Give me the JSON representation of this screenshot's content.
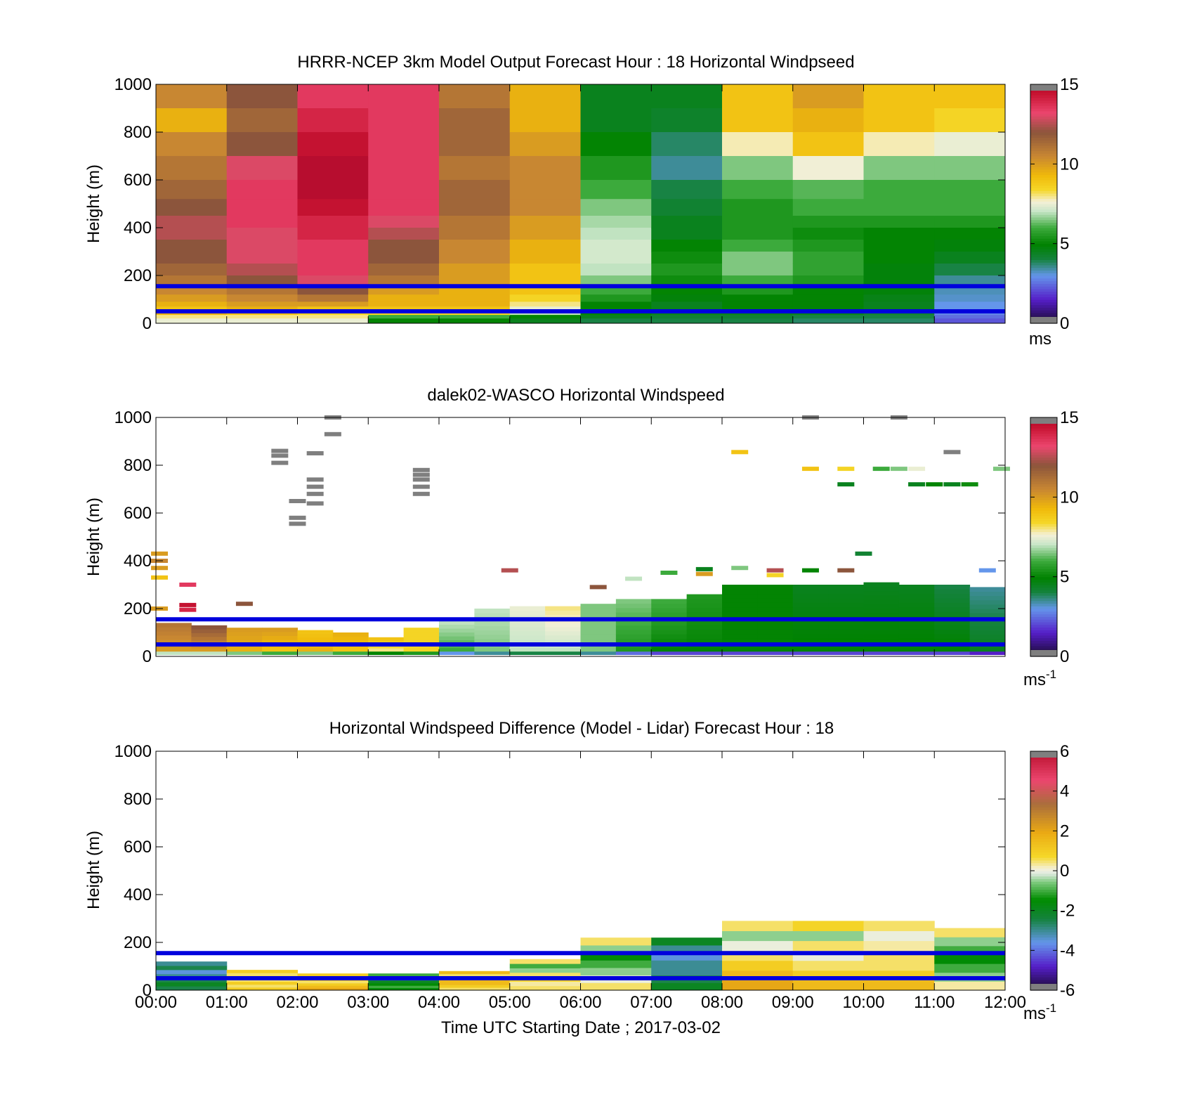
{
  "figure": {
    "xlabel": "Time UTC  Starting Date ; 2017-03-02",
    "x_ticks": [
      "00:00",
      "01:00",
      "02:00",
      "03:00",
      "04:00",
      "05:00",
      "06:00",
      "07:00",
      "08:00",
      "09:00",
      "10:00",
      "11:00",
      "12:00"
    ],
    "reference_line_color": "#0000dd",
    "reference_heights_m": [
      50,
      155
    ]
  },
  "chart_data": [
    {
      "type": "heatmap",
      "title": "HRRR-NCEP 3km Model Output   Forecast Hour : 18 Horizontal Windpseed",
      "ylabel": "Height (m)",
      "ylim": [
        0,
        1000
      ],
      "yticks": [
        0,
        200,
        400,
        600,
        800,
        1000
      ],
      "x_range_hours": [
        0,
        12
      ],
      "colorbar": {
        "min": 0,
        "max": 15,
        "ticks": [
          0,
          5,
          10,
          15
        ],
        "units": "ms",
        "scheme": "speed"
      },
      "levels_m": [
        1000,
        900,
        800,
        700,
        600,
        520,
        450,
        400,
        350,
        300,
        250,
        200,
        150,
        120,
        90,
        70,
        50,
        35,
        20
      ],
      "columns": [
        {
          "hour": 0,
          "values": [
            10.5,
            9.5,
            10.5,
            11,
            11.5,
            12,
            12.5,
            12.5,
            12,
            12,
            11.5,
            11,
            10.5,
            10,
            9.5,
            9,
            9.5,
            8,
            7.5
          ]
        },
        {
          "hour": 1,
          "values": [
            12,
            11.5,
            12,
            13,
            13.5,
            13.5,
            13.5,
            13,
            13,
            13,
            12.5,
            12,
            11,
            10.5,
            10,
            9.5,
            9,
            8,
            7.5
          ]
        },
        {
          "hour": 2,
          "values": [
            13.5,
            14,
            14.5,
            14.8,
            14.8,
            14.5,
            14,
            14,
            13.5,
            13.5,
            13.5,
            13,
            12,
            11,
            10,
            9,
            8.5,
            8,
            7.5
          ]
        },
        {
          "hour": 3,
          "values": [
            13.5,
            13.5,
            13.5,
            13.5,
            13.5,
            13.5,
            13,
            12.5,
            12,
            12,
            11.5,
            11,
            10,
            9.5,
            9.5,
            9,
            8.5,
            6,
            5
          ]
        },
        {
          "hour": 4,
          "values": [
            11,
            11.5,
            11.5,
            11,
            11.5,
            11.5,
            11,
            11,
            10.5,
            10.5,
            10,
            10,
            9.5,
            9.5,
            9.5,
            9,
            8.5,
            6,
            5
          ]
        },
        {
          "hour": 5,
          "values": [
            9.5,
            9.5,
            10,
            10.5,
            10.5,
            10.5,
            10,
            10,
            9.5,
            9.5,
            9,
            9,
            9,
            8.5,
            8,
            7.5,
            7,
            5,
            4.5
          ]
        },
        {
          "hour": 6,
          "values": [
            4.5,
            4.5,
            5,
            5.5,
            6,
            6.5,
            6.8,
            7,
            7.2,
            7.2,
            7,
            6.5,
            6,
            5.5,
            5,
            5,
            5,
            4.5,
            4
          ]
        },
        {
          "hour": 7,
          "values": [
            4.5,
            4.3,
            3.8,
            3.5,
            4,
            4.2,
            4.5,
            4.5,
            5,
            5.2,
            5.5,
            5.2,
            5,
            4.8,
            4.5,
            4.5,
            4.5,
            4.2,
            4
          ]
        },
        {
          "hour": 8,
          "values": [
            9,
            9,
            7.8,
            6.5,
            6,
            5.5,
            5.5,
            5.5,
            6,
            6.5,
            6.5,
            6,
            5.5,
            5,
            5,
            5,
            4.5,
            4.2,
            4
          ]
        },
        {
          "hour": 9,
          "values": [
            10,
            9.5,
            9,
            7.6,
            6.2,
            6,
            5.5,
            5.2,
            5.5,
            5.8,
            5.8,
            5.5,
            5,
            5,
            5,
            4.8,
            4.5,
            4,
            3.8
          ]
        },
        {
          "hour": 10,
          "values": [
            9,
            9,
            7.8,
            6.5,
            6,
            6,
            5.5,
            5,
            5,
            5,
            4.8,
            4.8,
            4.8,
            4.6,
            4.5,
            4.5,
            4.2,
            4,
            3.8
          ]
        },
        {
          "hour": 11,
          "values": [
            9,
            8.5,
            7.5,
            6.5,
            6,
            6,
            5.5,
            5,
            4.8,
            4.5,
            4,
            3.5,
            3.3,
            3.2,
            3,
            3,
            2.8,
            2.5,
            2.2
          ]
        }
      ]
    },
    {
      "type": "heatmap",
      "title": "dalek02-WASCO  Horizontal Windspeed",
      "ylabel": "Height (m)",
      "ylim": [
        0,
        1000
      ],
      "yticks": [
        0,
        200,
        400,
        600,
        800,
        1000
      ],
      "x_range_hours": [
        0,
        12
      ],
      "colorbar": {
        "min": 0,
        "max": 15,
        "ticks": [
          0,
          5,
          10,
          15
        ],
        "units": "ms",
        "units_superscript": "-1",
        "scheme": "speed"
      },
      "profile_hours": [
        0,
        0.5,
        1,
        1.5,
        2,
        2.5,
        3,
        3.5,
        4,
        4.5,
        5,
        5.5,
        6,
        6.5,
        7,
        7.5,
        8,
        8.5,
        9,
        9.5,
        10,
        10.5,
        11,
        11.5
      ],
      "profile_tops_m": [
        140,
        130,
        120,
        120,
        110,
        100,
        80,
        120,
        150,
        200,
        210,
        210,
        220,
        240,
        240,
        260,
        300,
        300,
        300,
        300,
        310,
        300,
        300,
        290
      ],
      "profile_bottom_values": [
        10,
        10,
        9.5,
        9,
        9.5,
        9,
        8,
        8.5,
        6,
        6.5,
        7,
        7,
        6.5,
        5.5,
        5,
        5,
        5,
        5,
        5,
        5,
        5,
        5,
        5,
        4.5
      ],
      "profile_top_values": [
        11,
        12,
        10,
        10,
        9,
        9.5,
        9,
        8.5,
        7,
        7,
        7.5,
        8,
        6.5,
        6.5,
        6,
        5.5,
        5,
        5,
        4.5,
        4.5,
        4.5,
        4.5,
        4,
        3.5
      ],
      "sparse_points": [
        {
          "hour": 0.05,
          "height": 430,
          "value": 10
        },
        {
          "hour": 0.05,
          "height": 400,
          "value": 10.5
        },
        {
          "hour": 0.05,
          "height": 370,
          "value": 10
        },
        {
          "hour": 0.05,
          "height": 330,
          "value": 9
        },
        {
          "hour": 0.05,
          "height": 200,
          "value": 10
        },
        {
          "hour": 0.45,
          "height": 300,
          "value": 13.5
        },
        {
          "hour": 0.45,
          "height": 215,
          "value": 14.5
        },
        {
          "hour": 0.45,
          "height": 195,
          "value": 14
        },
        {
          "hour": 1.25,
          "height": 220,
          "value": 12
        },
        {
          "hour": 1.75,
          "height": 860,
          "value": 16
        },
        {
          "hour": 1.75,
          "height": 840,
          "value": 16
        },
        {
          "hour": 1.75,
          "height": 810,
          "value": 16
        },
        {
          "hour": 2.25,
          "height": 850,
          "value": 16
        },
        {
          "hour": 2.25,
          "height": 740,
          "value": 16
        },
        {
          "hour": 2.25,
          "height": 710,
          "value": 16
        },
        {
          "hour": 2.25,
          "height": 680,
          "value": 16
        },
        {
          "hour": 2.25,
          "height": 640,
          "value": 16
        },
        {
          "hour": 2.0,
          "height": 650,
          "value": 16
        },
        {
          "hour": 2.0,
          "height": 580,
          "value": 16
        },
        {
          "hour": 2.0,
          "height": 555,
          "value": 16
        },
        {
          "hour": 2.5,
          "height": 1000,
          "value": 16
        },
        {
          "hour": 2.5,
          "height": 930,
          "value": 16
        },
        {
          "hour": 3.75,
          "height": 780,
          "value": 16
        },
        {
          "hour": 3.75,
          "height": 760,
          "value": 16
        },
        {
          "hour": 3.75,
          "height": 740,
          "value": 16
        },
        {
          "hour": 3.75,
          "height": 710,
          "value": 16
        },
        {
          "hour": 3.75,
          "height": 680,
          "value": 16
        },
        {
          "hour": 5.0,
          "height": 360,
          "value": 12.5
        },
        {
          "hour": 6.75,
          "height": 325,
          "value": 7
        },
        {
          "hour": 6.25,
          "height": 290,
          "value": 12
        },
        {
          "hour": 7.25,
          "height": 350,
          "value": 6
        },
        {
          "hour": 7.75,
          "height": 365,
          "value": 4.5
        },
        {
          "hour": 7.75,
          "height": 345,
          "value": 10
        },
        {
          "hour": 8.25,
          "height": 370,
          "value": 6.5
        },
        {
          "hour": 8.25,
          "height": 855,
          "value": 9
        },
        {
          "hour": 8.75,
          "height": 360,
          "value": 12.5
        },
        {
          "hour": 8.75,
          "height": 340,
          "value": 8.5
        },
        {
          "hour": 9.25,
          "height": 360,
          "value": 5
        },
        {
          "hour": 9.25,
          "height": 785,
          "value": 9
        },
        {
          "hour": 9.25,
          "height": 1000,
          "value": 16
        },
        {
          "hour": 9.75,
          "height": 360,
          "value": 12
        },
        {
          "hour": 9.75,
          "height": 785,
          "value": 8.5
        },
        {
          "hour": 9.75,
          "height": 720,
          "value": 4.5
        },
        {
          "hour": 10.0,
          "height": 430,
          "value": 4.2
        },
        {
          "hour": 10.25,
          "height": 785,
          "value": 6
        },
        {
          "hour": 10.5,
          "height": 1000,
          "value": 16
        },
        {
          "hour": 10.5,
          "height": 785,
          "value": 6.5
        },
        {
          "hour": 10.75,
          "height": 785,
          "value": 7.5
        },
        {
          "hour": 10.75,
          "height": 720,
          "value": 4.5
        },
        {
          "hour": 11.0,
          "height": 720,
          "value": 5
        },
        {
          "hour": 11.25,
          "height": 855,
          "value": 16
        },
        {
          "hour": 11.25,
          "height": 720,
          "value": 4.5
        },
        {
          "hour": 11.5,
          "height": 720,
          "value": 5.2
        },
        {
          "hour": 11.75,
          "height": 360,
          "value": 3
        },
        {
          "hour": 11.95,
          "height": 785,
          "value": 6.5
        }
      ]
    },
    {
      "type": "heatmap",
      "title": "Horizontal Windspeed Difference (Model - Lidar) Forecast Hour : 18",
      "ylabel": "Height (m)",
      "ylim": [
        0,
        1000
      ],
      "yticks": [
        0,
        200,
        400,
        600,
        800,
        1000
      ],
      "x_range_hours": [
        0,
        12
      ],
      "colorbar": {
        "min": -6,
        "max": 6,
        "ticks": [
          -6,
          -4,
          -2,
          0,
          2,
          4,
          6
        ],
        "units": "ms",
        "units_superscript": "-1",
        "scheme": "difference"
      },
      "columns": [
        {
          "hour": 0,
          "top": 120,
          "values": [
            -2.5,
            -2,
            -2.5,
            -3,
            -3.5,
            -2.5,
            -3
          ]
        },
        {
          "hour": 1,
          "top": 85,
          "values": [
            1,
            0.5,
            1,
            0.5,
            1,
            0.5,
            1
          ]
        },
        {
          "hour": 2,
          "top": 70,
          "values": [
            2,
            1.5,
            1,
            0.5,
            1,
            0.5,
            1
          ]
        },
        {
          "hour": 3,
          "top": 70,
          "values": [
            -1.5,
            -1,
            -1.5,
            -2,
            -2.5,
            -2,
            -1
          ]
        },
        {
          "hour": 4,
          "top": 80,
          "values": [
            0.5,
            1,
            1.5,
            1.5,
            1,
            0.5,
            1.5
          ]
        },
        {
          "hour": 5,
          "top": 130,
          "values": [
            0.5,
            0.3,
            0.8,
            0.5,
            -0.5,
            -1,
            0.5
          ]
        },
        {
          "hour": 6,
          "top": 220,
          "values": [
            0.5,
            0,
            -0.5,
            -1,
            -1.5,
            -0.5,
            0.5
          ]
        },
        {
          "hour": 7,
          "top": 220,
          "values": [
            -2,
            -2.5,
            -3,
            -3,
            -3.5,
            -3,
            -2
          ]
        },
        {
          "hour": 8,
          "top": 290,
          "values": [
            2,
            1.5,
            1,
            0.5,
            0,
            -0.5,
            0.5
          ]
        },
        {
          "hour": 9,
          "top": 290,
          "values": [
            1.5,
            1,
            0.5,
            0,
            0.5,
            -0.5,
            0.8
          ]
        },
        {
          "hour": 10,
          "top": 290,
          "values": [
            1.5,
            1,
            0.5,
            0.5,
            0.3,
            0,
            0.5
          ]
        },
        {
          "hour": 11,
          "top": 260,
          "values": [
            0.3,
            -0.5,
            -1,
            -1.5,
            -1,
            -0.5,
            0.5
          ]
        }
      ]
    }
  ]
}
